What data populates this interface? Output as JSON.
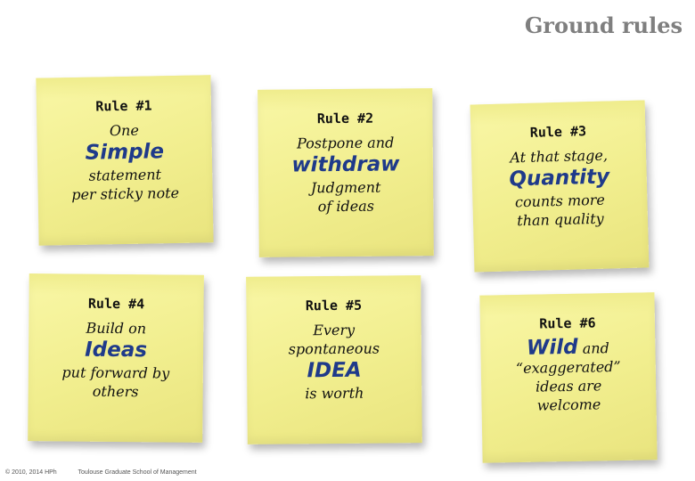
{
  "title": "Ground rules",
  "notes": [
    {
      "rule": "Rule #1",
      "l1": "One",
      "em": "Simple",
      "l2": "statement",
      "l3": "per sticky note"
    },
    {
      "rule": "Rule #2",
      "l1": "Postpone and",
      "em": "withdraw",
      "l2": "Judgment",
      "l3": "of ideas"
    },
    {
      "rule": "Rule #3",
      "l1": "At that stage,",
      "em": "Quantity",
      "l2": "counts more",
      "l3": "than quality"
    },
    {
      "rule": "Rule #4",
      "l1": "Build on",
      "em": "Ideas",
      "l2": "put forward by",
      "l3": "others"
    },
    {
      "rule": "Rule #5",
      "l1": "Every",
      "l1b": "spontaneous",
      "em": "IDEA",
      "l2": "is worth"
    },
    {
      "rule": "Rule #6",
      "em": "Wild",
      "after_em": "and",
      "l2": "“exaggerated”",
      "l3": "ideas are",
      "l4": "welcome"
    }
  ],
  "footer": {
    "copyright": "© 2010, 2014 HPh",
    "school": "Toulouse Graduate School of Management"
  }
}
